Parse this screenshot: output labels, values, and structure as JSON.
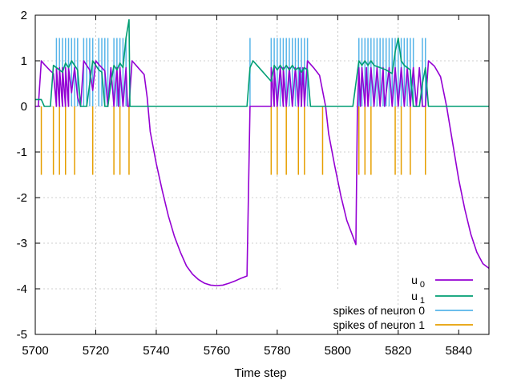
{
  "chart_data": {
    "type": "line",
    "xlabel": "Time step",
    "ylabel": "",
    "xlim": [
      5700,
      5850
    ],
    "ylim": [
      -5,
      2
    ],
    "x_ticks": [
      "5700",
      "5720",
      "5740",
      "5760",
      "5780",
      "5800",
      "5820",
      "5840"
    ],
    "y_ticks": [
      "-5",
      "-4",
      "-3",
      "-2",
      "-1",
      "0",
      "1",
      "2"
    ],
    "grid": true,
    "legend": "bottom-right",
    "series": [
      {
        "name": "u0",
        "base": "u",
        "sub": "0",
        "color": "#9400d3",
        "style": "line",
        "points": [
          [
            5700,
            0
          ],
          [
            5701,
            0
          ],
          [
            5702,
            1.0
          ],
          [
            5703,
            0.92
          ],
          [
            5704,
            0.85
          ],
          [
            5705,
            0.78
          ],
          [
            5706,
            0.72
          ],
          [
            5707,
            0.0
          ],
          [
            5707,
            0.85
          ],
          [
            5708,
            0.0
          ],
          [
            5708,
            0.85
          ],
          [
            5709,
            0.0
          ],
          [
            5709,
            0.85
          ],
          [
            5710,
            0.0
          ],
          [
            5710,
            0.85
          ],
          [
            5711,
            0.0
          ],
          [
            5711,
            0.85
          ],
          [
            5712,
            0.3
          ],
          [
            5713,
            0.85
          ],
          [
            5714,
            0.2
          ],
          [
            5715,
            0.0
          ],
          [
            5716,
            1.0
          ],
          [
            5717,
            0.9
          ],
          [
            5718,
            0.8
          ],
          [
            5719,
            0.35
          ],
          [
            5720,
            1.0
          ],
          [
            5721,
            0.92
          ],
          [
            5722,
            0.85
          ],
          [
            5723,
            0.78
          ],
          [
            5724,
            0.0
          ],
          [
            5725,
            0.85
          ],
          [
            5726,
            0.0
          ],
          [
            5727,
            0.85
          ],
          [
            5727.5,
            0.0
          ],
          [
            5728,
            0.85
          ],
          [
            5729,
            0.0
          ],
          [
            5730,
            0.85
          ],
          [
            5730.5,
            0.0
          ],
          [
            5731,
            0.0
          ],
          [
            5732,
            1.0
          ],
          [
            5734,
            0.85
          ],
          [
            5736,
            0.7
          ],
          [
            5737,
            0.2
          ],
          [
            5738,
            -0.55
          ],
          [
            5740,
            -1.25
          ],
          [
            5742,
            -1.85
          ],
          [
            5744,
            -2.4
          ],
          [
            5746,
            -2.85
          ],
          [
            5748,
            -3.2
          ],
          [
            5750,
            -3.5
          ],
          [
            5752,
            -3.68
          ],
          [
            5754,
            -3.8
          ],
          [
            5756,
            -3.88
          ],
          [
            5758,
            -3.92
          ],
          [
            5760,
            -3.93
          ],
          [
            5762,
            -3.92
          ],
          [
            5764,
            -3.88
          ],
          [
            5766,
            -3.83
          ],
          [
            5768,
            -3.77
          ],
          [
            5770,
            -3.72
          ],
          [
            5771,
            0.0
          ],
          [
            5778,
            0.0
          ],
          [
            5778,
            0.85
          ],
          [
            5779,
            0.0
          ],
          [
            5779,
            0.85
          ],
          [
            5780,
            0.0
          ],
          [
            5781,
            0.85
          ],
          [
            5782,
            0.0
          ],
          [
            5782,
            0.85
          ],
          [
            5783,
            0.0
          ],
          [
            5784,
            0.85
          ],
          [
            5785,
            0.0
          ],
          [
            5786,
            0.85
          ],
          [
            5787,
            0.0
          ],
          [
            5787.5,
            0.85
          ],
          [
            5788,
            0.0
          ],
          [
            5788.5,
            0.85
          ],
          [
            5789,
            0.0
          ],
          [
            5790,
            1.0
          ],
          [
            5792,
            0.85
          ],
          [
            5794,
            0.68
          ],
          [
            5796,
            0.0
          ],
          [
            5797,
            -0.6
          ],
          [
            5799,
            -1.3
          ],
          [
            5801,
            -1.95
          ],
          [
            5803,
            -2.5
          ],
          [
            5805,
            -2.85
          ],
          [
            5806,
            -3.03
          ],
          [
            5806.5,
            -0.1
          ],
          [
            5807,
            0.85
          ],
          [
            5807.5,
            0.0
          ],
          [
            5808,
            0.85
          ],
          [
            5809,
            0.0
          ],
          [
            5809.5,
            0.85
          ],
          [
            5810,
            0.0
          ],
          [
            5811,
            0.85
          ],
          [
            5812,
            0.0
          ],
          [
            5813,
            0.85
          ],
          [
            5814,
            0.0
          ],
          [
            5815,
            0.85
          ],
          [
            5815.5,
            0.0
          ],
          [
            5817,
            0.85
          ],
          [
            5818,
            0.0
          ],
          [
            5819,
            0.85
          ],
          [
            5820,
            0.0
          ],
          [
            5821,
            0.85
          ],
          [
            5822,
            0.0
          ],
          [
            5823,
            0.85
          ],
          [
            5824,
            0.0
          ],
          [
            5825,
            0.85
          ],
          [
            5826,
            0.0
          ],
          [
            5827,
            0.85
          ],
          [
            5828,
            0.0
          ],
          [
            5829,
            0.0
          ],
          [
            5830,
            1.0
          ],
          [
            5832,
            0.88
          ],
          [
            5834,
            0.65
          ],
          [
            5836,
            0.0
          ],
          [
            5838,
            -0.8
          ],
          [
            5840,
            -1.6
          ],
          [
            5842,
            -2.25
          ],
          [
            5844,
            -2.8
          ],
          [
            5846,
            -3.2
          ],
          [
            5848,
            -3.45
          ],
          [
            5850,
            -3.55
          ]
        ]
      },
      {
        "name": "u1",
        "base": "u",
        "sub": "1",
        "color": "#009e73",
        "style": "line",
        "points": [
          [
            5700,
            0.15
          ],
          [
            5702,
            0.15
          ],
          [
            5703,
            0.0
          ],
          [
            5705,
            0.0
          ],
          [
            5706,
            0.9
          ],
          [
            5707,
            0.85
          ],
          [
            5708,
            0.8
          ],
          [
            5709,
            0.75
          ],
          [
            5710,
            0.95
          ],
          [
            5711,
            0.85
          ],
          [
            5712,
            1.0
          ],
          [
            5713,
            0.9
          ],
          [
            5714,
            0.8
          ],
          [
            5715,
            0.0
          ],
          [
            5717,
            0.0
          ],
          [
            5718,
            0.5
          ],
          [
            5719,
            1.0
          ],
          [
            5720,
            0.9
          ],
          [
            5721,
            0.8
          ],
          [
            5722,
            0.75
          ],
          [
            5723,
            0.0
          ],
          [
            5724,
            0.0
          ],
          [
            5725,
            0.5
          ],
          [
            5726,
            0.9
          ],
          [
            5727,
            0.8
          ],
          [
            5728,
            0.95
          ],
          [
            5729,
            0.85
          ],
          [
            5730,
            1.5
          ],
          [
            5731,
            1.9
          ],
          [
            5731.3,
            0.0
          ],
          [
            5770,
            0.0
          ],
          [
            5771,
            0.85
          ],
          [
            5772,
            1.0
          ],
          [
            5774,
            0.85
          ],
          [
            5776,
            0.7
          ],
          [
            5778,
            0.55
          ],
          [
            5779,
            0.9
          ],
          [
            5780,
            0.8
          ],
          [
            5781,
            0.9
          ],
          [
            5782,
            0.8
          ],
          [
            5783,
            0.9
          ],
          [
            5784,
            0.8
          ],
          [
            5785,
            0.9
          ],
          [
            5786,
            0.8
          ],
          [
            5787,
            0.85
          ],
          [
            5788,
            0.75
          ],
          [
            5789,
            0.85
          ],
          [
            5790,
            0.8
          ],
          [
            5791,
            0.0
          ],
          [
            5805,
            0.0
          ],
          [
            5806,
            0.5
          ],
          [
            5807,
            1.0
          ],
          [
            5808,
            0.9
          ],
          [
            5809,
            1.0
          ],
          [
            5810,
            0.9
          ],
          [
            5811,
            1.0
          ],
          [
            5812,
            0.9
          ],
          [
            5814,
            0.85
          ],
          [
            5816,
            0.8
          ],
          [
            5818,
            0.72
          ],
          [
            5819,
            1.2
          ],
          [
            5820,
            1.5
          ],
          [
            5821,
            1.0
          ],
          [
            5822,
            0.9
          ],
          [
            5823,
            0.85
          ],
          [
            5824,
            0.8
          ],
          [
            5825,
            0.0
          ],
          [
            5827,
            0.0
          ],
          [
            5828,
            0.5
          ],
          [
            5829,
            0.85
          ],
          [
            5830,
            0.0
          ],
          [
            5850,
            0.0
          ]
        ]
      },
      {
        "name": "spikes of neuron 0",
        "color": "#56b4e9",
        "style": "spikes",
        "baseline": 0,
        "height": 1.5,
        "times": [
          5707,
          5708,
          5709,
          5710,
          5711,
          5712,
          5713,
          5714,
          5716,
          5717,
          5718,
          5719,
          5721,
          5722,
          5723,
          5724,
          5726,
          5727,
          5728,
          5729,
          5730,
          5771,
          5778,
          5779,
          5780,
          5781,
          5782,
          5783,
          5784,
          5785,
          5786,
          5787,
          5788,
          5789,
          5790,
          5807,
          5808,
          5809,
          5810,
          5811,
          5812,
          5813,
          5814,
          5815,
          5816,
          5817,
          5818,
          5819,
          5820,
          5821,
          5822,
          5823,
          5824,
          5825,
          5828,
          5829
        ]
      },
      {
        "name": "spikes of neuron 1",
        "color": "#e69f00",
        "style": "spikes",
        "baseline": 0,
        "height": -1.5,
        "times": [
          5702,
          5706,
          5708,
          5710,
          5713,
          5719,
          5726,
          5728,
          5731,
          5778,
          5780,
          5783,
          5787,
          5789,
          5795,
          5807,
          5809,
          5811,
          5819,
          5821,
          5824,
          5829
        ]
      }
    ]
  }
}
